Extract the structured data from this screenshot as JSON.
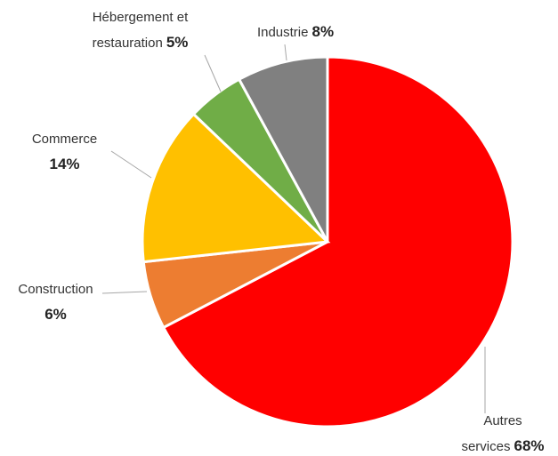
{
  "chart_data": {
    "type": "pie",
    "categories": [
      "Autres services",
      "Construction",
      "Commerce",
      "Hébergement et restauration",
      "Industrie"
    ],
    "values": [
      68,
      6,
      14,
      5,
      8
    ],
    "value_labels": [
      "68%",
      "6%",
      "14%",
      "5%",
      "8%"
    ],
    "colors": [
      "#ff0000",
      "#ed7d31",
      "#ffc000",
      "#70ad47",
      "#808080"
    ]
  }
}
